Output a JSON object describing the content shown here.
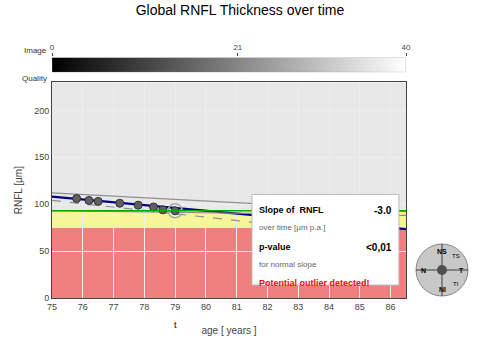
{
  "chart_data": {
    "type": "scatter",
    "title": "Global RNFL Thickness over time",
    "x_label": "age [ years ]",
    "y_label": "RNFL [µm]",
    "xlim": [
      75,
      86.5
    ],
    "ylim": [
      0,
      230
    ],
    "xticks": [
      75,
      76,
      77,
      78,
      79,
      80,
      81,
      82,
      83,
      84,
      85,
      86
    ],
    "yticks": [
      0,
      50,
      100,
      150,
      200
    ],
    "grid": true,
    "series": [
      {
        "type": "line",
        "color": "#00008B",
        "line_style": "solid",
        "x": [
          75,
          86.5
        ],
        "values": [
          108,
          73.5
        ]
      },
      {
        "type": "line",
        "color": "#909090",
        "line_style": "solid",
        "x": [
          75,
          86.5
        ],
        "values": [
          112,
          92
        ]
      },
      {
        "type": "line",
        "color": "#909090",
        "line_style": "dashed",
        "x": [
          75,
          86.5
        ],
        "values": [
          104,
          63
        ]
      },
      {
        "type": "line",
        "color": "#909090",
        "line_style": "solid",
        "x": [
          75,
          86.5
        ],
        "values": [
          93,
          88
        ]
      },
      {
        "type": "scatter",
        "color": "#606060",
        "marker": "circle",
        "x": [
          75.8,
          76.2,
          76.5,
          77.2,
          77.8,
          78.3,
          78.6,
          79.0
        ],
        "values": [
          106,
          104,
          103,
          101,
          99,
          97,
          94,
          93
        ]
      },
      {
        "type": "scatter",
        "color": "#aaaaaa",
        "marker": "circle-open",
        "x": [
          79.0
        ],
        "values": [
          93
        ]
      }
    ],
    "bands": [
      {
        "from": 0,
        "to": 75,
        "color": "#f08080"
      },
      {
        "from": 75,
        "to": 93,
        "color": "#f5f59a"
      },
      {
        "from": 93,
        "to": 230,
        "color": "#e8e8e8"
      }
    ],
    "hlines": [
      {
        "y": 93,
        "color": "#00aa00"
      }
    ],
    "annotations": [
      {
        "text": "t",
        "x": 79
      }
    ],
    "info_box": [
      [
        "Slope of  RNFL",
        "-3.0"
      ],
      [
        "over time [µm p.a.]"
      ],
      [
        "p-value",
        "<0,01"
      ],
      [
        "for normal slope"
      ],
      [
        "Potential outlier detected!"
      ]
    ],
    "quality_bar": {
      "labels": [
        "Image",
        "Quality"
      ],
      "xlim": [
        0,
        40
      ],
      "xticks": [
        0,
        21,
        40
      ]
    },
    "compass": {
      "labels": [
        "NS",
        "NI",
        "N",
        "T",
        "TS",
        "TI"
      ]
    }
  }
}
